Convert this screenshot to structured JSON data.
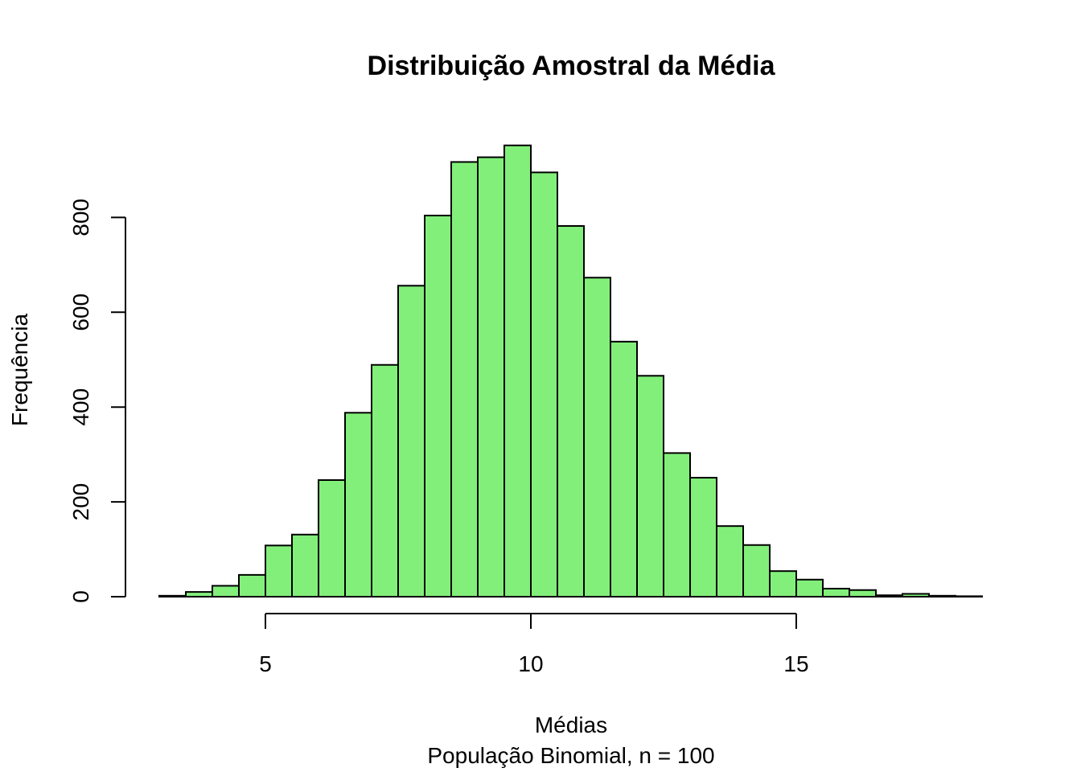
{
  "chart_data": {
    "type": "bar",
    "title": "Distribuição Amostral da Média",
    "xlabel": "Médias",
    "subtitle": "População Binomial, n = 100",
    "ylabel": "Frequência",
    "bar_color": "#83ef7b",
    "border_color": "#000000",
    "bin_width": 0.5,
    "bins_start": [
      3.0,
      3.5,
      4.0,
      4.5,
      5.0,
      5.5,
      6.0,
      6.5,
      7.0,
      7.5,
      8.0,
      8.5,
      9.0,
      9.5,
      10.0,
      10.5,
      11.0,
      11.5,
      12.0,
      12.5,
      13.0,
      13.5,
      14.0,
      14.5,
      15.0,
      15.5,
      16.0,
      16.5,
      17.0,
      17.5,
      18.0
    ],
    "values": [
      2,
      10,
      23,
      46,
      108,
      131,
      246,
      388,
      489,
      656,
      804,
      917,
      927,
      952,
      895,
      782,
      673,
      538,
      466,
      303,
      251,
      149,
      109,
      54,
      36,
      17,
      14,
      3,
      6,
      2,
      1
    ],
    "x_ticks": [
      5,
      10,
      15
    ],
    "x_tick_labels": [
      "5",
      "10",
      "15"
    ],
    "y_ticks": [
      0,
      200,
      400,
      600,
      800
    ],
    "y_tick_labels": [
      "0",
      "200",
      "400",
      "600",
      "800"
    ],
    "xlim": [
      3.0,
      18.5
    ],
    "ylim": [
      0,
      952
    ],
    "grid": false,
    "legend": "none"
  }
}
